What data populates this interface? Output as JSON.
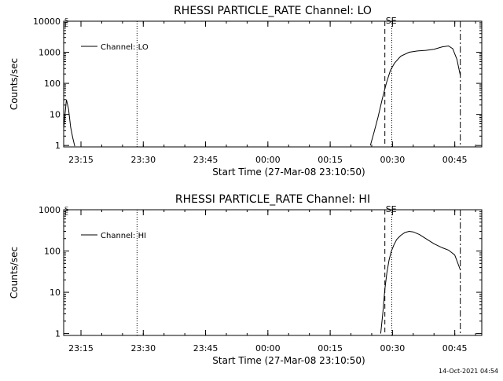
{
  "footer_timestamp": "14-Oct-2021 04:54",
  "colors": {
    "background": "#ffffff",
    "foreground": "#000000"
  },
  "chart_data": [
    {
      "type": "line",
      "title": "RHESSI PARTICLE_RATE Channel: LO",
      "xlabel": "Start Time (27-Mar-08 23:10:50)",
      "ylabel": "Counts/sec",
      "yscale": "log",
      "ylim": [
        0.9,
        10000
      ],
      "xlim": [
        "23:10:50",
        "00:51:30"
      ],
      "x_ticks": [
        "23:15",
        "23:30",
        "23:45",
        "00:00",
        "00:15",
        "00:30",
        "00:45"
      ],
      "y_ticks": [
        "1",
        "10",
        "100",
        "1000",
        "10000"
      ],
      "legend": {
        "position": "top-left",
        "entries": [
          "Channel: LO"
        ]
      },
      "grid": false,
      "series": [
        {
          "name": "Channel: LO",
          "x": [
            "23:10:50",
            "23:11:30",
            "23:12:00",
            "23:12:30",
            "23:13:00",
            "23:13:30",
            "00:24:40",
            "00:25:30",
            "00:26:30",
            "00:27:30",
            "00:28:30",
            "00:29:30",
            "00:30:30",
            "00:32:00",
            "00:34:00",
            "00:36:00",
            "00:38:00",
            "00:40:00",
            "00:42:00",
            "00:43:30",
            "00:44:30",
            "00:45:30",
            "00:46:20"
          ],
          "y": [
            3.5,
            30,
            15,
            4,
            1.8,
            0.95,
            1,
            2.5,
            8,
            30,
            100,
            260,
            450,
            750,
            1000,
            1100,
            1150,
            1250,
            1500,
            1600,
            1300,
            600,
            180
          ]
        }
      ],
      "annotations": [
        {
          "type": "vline",
          "x": "23:28:30",
          "style": "dotted"
        },
        {
          "type": "vline",
          "x": "00:28:10",
          "style": "dashed"
        },
        {
          "type": "vline",
          "x": "00:29:50",
          "style": "dotted"
        },
        {
          "type": "vline",
          "x": "00:46:20",
          "style": "dashdot"
        },
        {
          "type": "text",
          "x": "00:28:10",
          "text": "SE"
        },
        {
          "type": "text",
          "x": "23:10:50",
          "text": "S"
        },
        {
          "type": "text",
          "x": "23:10:50",
          "text": "E"
        }
      ]
    },
    {
      "type": "line",
      "title": "RHESSI PARTICLE_RATE Channel: HI",
      "xlabel": "Start Time (27-Mar-08 23:10:50)",
      "ylabel": "Counts/sec",
      "yscale": "log",
      "ylim": [
        0.9,
        1000
      ],
      "xlim": [
        "23:10:50",
        "00:51:30"
      ],
      "x_ticks": [
        "23:15",
        "23:30",
        "23:45",
        "00:00",
        "00:15",
        "00:30",
        "00:45"
      ],
      "y_ticks": [
        "1",
        "10",
        "100",
        "1000"
      ],
      "legend": {
        "position": "top-left",
        "entries": [
          "Channel: HI"
        ]
      },
      "grid": false,
      "series": [
        {
          "name": "Channel: HI",
          "x": [
            "00:27:10",
            "00:27:40",
            "00:28:10",
            "00:28:40",
            "00:29:10",
            "00:29:40",
            "00:30:20",
            "00:31:00",
            "00:32:00",
            "00:33:00",
            "00:34:00",
            "00:35:00",
            "00:36:30",
            "00:38:00",
            "00:40:00",
            "00:42:00",
            "00:43:30",
            "00:45:00",
            "00:46:20"
          ],
          "y": [
            1,
            3,
            12,
            30,
            60,
            95,
            140,
            190,
            240,
            280,
            300,
            290,
            250,
            200,
            150,
            120,
            105,
            80,
            35
          ]
        }
      ],
      "annotations": [
        {
          "type": "vline",
          "x": "23:28:30",
          "style": "dotted"
        },
        {
          "type": "vline",
          "x": "00:28:10",
          "style": "dashed"
        },
        {
          "type": "vline",
          "x": "00:29:50",
          "style": "dotted"
        },
        {
          "type": "vline",
          "x": "00:46:20",
          "style": "dashdot"
        },
        {
          "type": "text",
          "x": "00:28:10",
          "text": "SE"
        },
        {
          "type": "text",
          "x": "23:10:50",
          "text": "S"
        },
        {
          "type": "text",
          "x": "23:10:50",
          "text": "E"
        }
      ]
    }
  ]
}
